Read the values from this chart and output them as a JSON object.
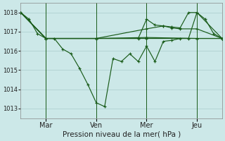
{
  "title": "Pression niveau de la mer( hPa )",
  "bg_color": "#cce8e8",
  "grid_color": "#aacccc",
  "line_color": "#1a5c1a",
  "ylim": [
    1012.5,
    1018.5
  ],
  "yticks": [
    1013,
    1014,
    1015,
    1016,
    1017,
    1018
  ],
  "ylabel_fontsize": 6,
  "xtick_labels": [
    "Mar",
    "Ven",
    "Mer",
    "Jeu"
  ],
  "xtick_positions": [
    12,
    36,
    60,
    84
  ],
  "vline_positions": [
    12,
    36,
    60,
    84
  ],
  "xlim": [
    0,
    96
  ],
  "main_x": [
    0,
    4,
    8,
    12,
    16,
    20,
    24,
    28,
    32,
    36,
    40,
    44,
    48,
    52,
    56,
    60,
    64,
    68,
    72,
    76,
    80,
    84,
    88,
    92,
    96
  ],
  "main_y": [
    1018.0,
    1017.65,
    1016.9,
    1016.65,
    1016.65,
    1016.1,
    1015.85,
    1015.1,
    1014.25,
    1013.3,
    1013.1,
    1015.6,
    1015.45,
    1015.85,
    1015.45,
    1016.25,
    1015.45,
    1016.5,
    1016.55,
    1016.65,
    1016.65,
    1018.0,
    1017.65,
    1016.9,
    1016.65
  ],
  "line2_x": [
    0,
    12,
    36,
    60,
    84,
    96
  ],
  "line2_y": [
    1018.0,
    1016.65,
    1016.65,
    1016.65,
    1016.65,
    1016.65
  ],
  "line3_x": [
    0,
    12,
    36,
    60,
    68,
    72,
    76,
    84,
    96
  ],
  "line3_y": [
    1018.0,
    1016.65,
    1016.65,
    1017.15,
    1017.3,
    1017.2,
    1017.15,
    1017.15,
    1016.65
  ],
  "line4_x": [
    0,
    12,
    36,
    56,
    60,
    64,
    68,
    72,
    76,
    80,
    84,
    96
  ],
  "line4_y": [
    1018.0,
    1016.65,
    1016.65,
    1016.65,
    1017.65,
    1017.35,
    1017.3,
    1017.25,
    1017.2,
    1018.0,
    1018.0,
    1016.65
  ],
  "line5_x": [
    0,
    12,
    36,
    60,
    84,
    96
  ],
  "line5_y": [
    1018.0,
    1016.65,
    1016.65,
    1016.7,
    1016.65,
    1016.65
  ]
}
